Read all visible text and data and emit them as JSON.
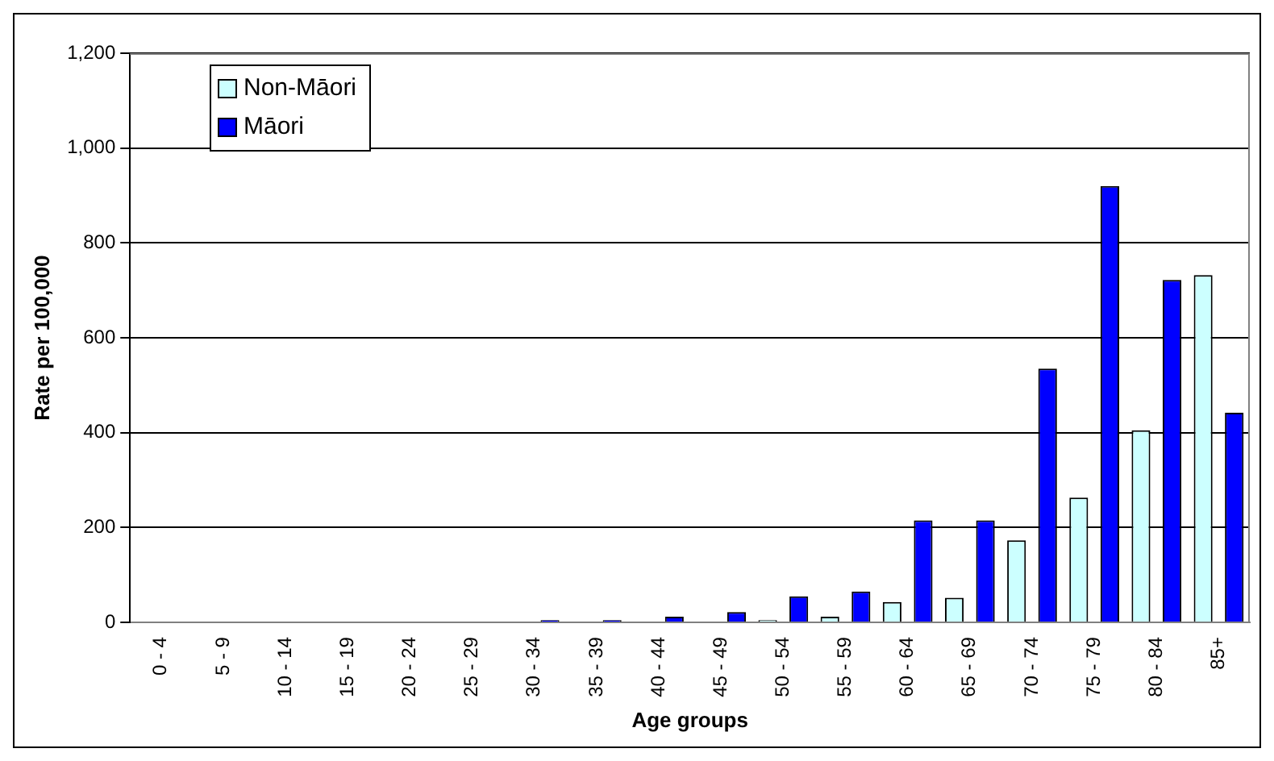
{
  "chart_data": {
    "type": "bar",
    "xlabel": "Age groups",
    "ylabel": "Rate per 100,000",
    "categories": [
      "0 - 4",
      "5 - 9",
      "10 - 14",
      "15 - 19",
      "20 - 24",
      "25 - 29",
      "30 - 34",
      "35 - 39",
      "40 - 44",
      "45 - 49",
      "50 - 54",
      "55 - 59",
      "60 - 64",
      "65 - 69",
      "70 - 74",
      "75 - 79",
      "80 - 84",
      "85+"
    ],
    "series": [
      {
        "name": "Non-Māori",
        "color": "#ccffff",
        "values": [
          0,
          0,
          0,
          0,
          0,
          0,
          0,
          0,
          0,
          null,
          5,
          12,
          43,
          52,
          173,
          263,
          405,
          732
        ]
      },
      {
        "name": "Māori",
        "color": "#0000ff",
        "values": [
          0,
          0,
          0,
          0,
          0,
          0,
          5,
          5,
          12,
          22,
          55,
          65,
          215,
          215,
          535,
          920,
          722,
          442
        ]
      }
    ],
    "ylim": [
      0,
      1200
    ],
    "yticks": [
      0,
      200,
      400,
      600,
      800,
      {
        "value": 1000,
        "label": "1,000"
      },
      {
        "value": 1200,
        "label": "1,200"
      }
    ],
    "grid": "y",
    "legend": "top left"
  }
}
